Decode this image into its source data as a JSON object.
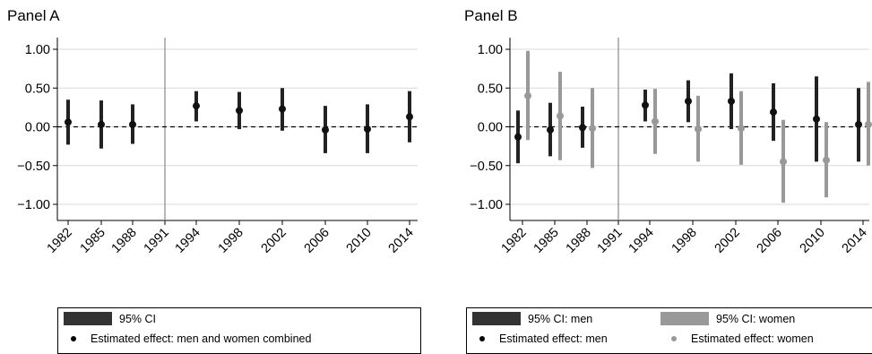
{
  "chart_data": [
    {
      "type": "scatter",
      "title": "Panel A",
      "xlabel": "",
      "ylabel": "",
      "categories": [
        "1982",
        "1985",
        "1988",
        "1991",
        "1994",
        "1998",
        "2002",
        "2006",
        "2010",
        "2014"
      ],
      "ylim": [
        -1.0,
        1.0
      ],
      "yticks": [
        "1.00",
        "0.50",
        "0.00",
        "−0.50",
        "−1.00"
      ],
      "ytick_values": [
        1.0,
        0.5,
        0.0,
        -0.5,
        -1.0
      ],
      "reference_line_y": 0,
      "reference_line_x": "1991",
      "grid": true,
      "series": [
        {
          "name": "Estimated effect: men and women combined",
          "ci_name": "95% CI",
          "color": "#222222",
          "points": [
            {
              "x": "1982",
              "y": 0.06,
              "lo": -0.23,
              "hi": 0.35
            },
            {
              "x": "1985",
              "y": 0.03,
              "lo": -0.28,
              "hi": 0.34
            },
            {
              "x": "1988",
              "y": 0.03,
              "lo": -0.22,
              "hi": 0.29
            },
            {
              "x": "1994",
              "y": 0.27,
              "lo": 0.07,
              "hi": 0.46
            },
            {
              "x": "1998",
              "y": 0.21,
              "lo": -0.03,
              "hi": 0.45
            },
            {
              "x": "2002",
              "y": 0.23,
              "lo": -0.05,
              "hi": 0.5
            },
            {
              "x": "2006",
              "y": -0.04,
              "lo": -0.34,
              "hi": 0.27
            },
            {
              "x": "2010",
              "y": -0.03,
              "lo": -0.34,
              "hi": 0.29
            },
            {
              "x": "2014",
              "y": 0.13,
              "lo": -0.2,
              "hi": 0.46
            }
          ]
        }
      ]
    },
    {
      "type": "scatter",
      "title": "Panel B",
      "xlabel": "",
      "ylabel": "",
      "categories": [
        "1982",
        "1985",
        "1988",
        "1991",
        "1994",
        "1998",
        "2002",
        "2006",
        "2010",
        "2014"
      ],
      "ylim": [
        -1.0,
        1.0
      ],
      "yticks": [
        "1.00",
        "0.50",
        "0.00",
        "−0.50",
        "−1.00"
      ],
      "ytick_values": [
        1.0,
        0.5,
        0.0,
        -0.5,
        -1.0
      ],
      "reference_line_y": 0,
      "reference_line_x": "1991",
      "grid": true,
      "series": [
        {
          "name": "Estimated effect: men",
          "ci_name": "95% CI: men",
          "color": "#222222",
          "points": [
            {
              "x": "1982",
              "y": -0.13,
              "lo": -0.47,
              "hi": 0.21
            },
            {
              "x": "1985",
              "y": -0.04,
              "lo": -0.38,
              "hi": 0.31
            },
            {
              "x": "1988",
              "y": -0.01,
              "lo": -0.27,
              "hi": 0.26
            },
            {
              "x": "1994",
              "y": 0.28,
              "lo": 0.07,
              "hi": 0.48
            },
            {
              "x": "1998",
              "y": 0.33,
              "lo": 0.06,
              "hi": 0.6
            },
            {
              "x": "2002",
              "y": 0.33,
              "lo": -0.03,
              "hi": 0.69
            },
            {
              "x": "2006",
              "y": 0.19,
              "lo": -0.18,
              "hi": 0.56
            },
            {
              "x": "2010",
              "y": 0.1,
              "lo": -0.45,
              "hi": 0.65
            },
            {
              "x": "2014",
              "y": 0.03,
              "lo": -0.45,
              "hi": 0.5
            }
          ]
        },
        {
          "name": "Estimated effect: women",
          "ci_name": "95% CI: women",
          "color": "#999999",
          "points": [
            {
              "x": "1982",
              "y": 0.4,
              "lo": -0.17,
              "hi": 0.98
            },
            {
              "x": "1985",
              "y": 0.14,
              "lo": -0.43,
              "hi": 0.71
            },
            {
              "x": "1988",
              "y": -0.02,
              "lo": -0.53,
              "hi": 0.5
            },
            {
              "x": "1994",
              "y": 0.07,
              "lo": -0.35,
              "hi": 0.49
            },
            {
              "x": "1998",
              "y": -0.03,
              "lo": -0.45,
              "hi": 0.4
            },
            {
              "x": "2002",
              "y": -0.02,
              "lo": -0.49,
              "hi": 0.46
            },
            {
              "x": "2006",
              "y": -0.45,
              "lo": -0.98,
              "hi": 0.09
            },
            {
              "x": "2010",
              "y": -0.43,
              "lo": -0.91,
              "hi": 0.06
            },
            {
              "x": "2014",
              "y": 0.03,
              "lo": -0.5,
              "hi": 0.58
            }
          ]
        }
      ]
    }
  ],
  "legends": {
    "a": {
      "ci_label": "95% CI",
      "point_label": "Estimated effect: men and women combined",
      "ci_color": "#333333",
      "point_color": "#000000"
    },
    "b": {
      "men_ci_label": "95% CI: men",
      "women_ci_label": "95% CI: women",
      "men_point_label": "Estimated effect: men",
      "women_point_label": "Estimated effect: women",
      "men_color": "#333333",
      "women_color": "#999999"
    }
  }
}
